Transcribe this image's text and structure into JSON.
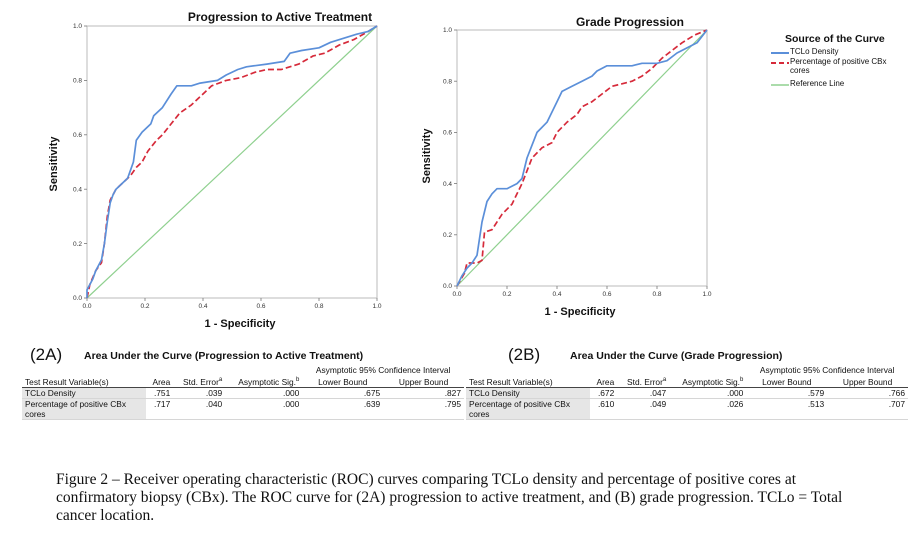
{
  "chart_data": [
    {
      "type": "line",
      "title": "Progression to Active Treatment",
      "xlabel": "1 - Specificity",
      "ylabel": "Sensitivity",
      "xlim": [
        0,
        1
      ],
      "ylim": [
        0,
        1
      ],
      "xticks": [
        "0.0",
        "0.2",
        "0.4",
        "0.6",
        "0.8",
        "1.0"
      ],
      "yticks": [
        "0.0",
        "0.2",
        "0.4",
        "0.6",
        "0.8",
        "1.0"
      ],
      "grid": false,
      "series": [
        {
          "name": "TCLo Density",
          "color": "#5b8fd9",
          "style": "solid",
          "points": [
            [
              0,
              0
            ],
            [
              0,
              0.03
            ],
            [
              0.02,
              0.07
            ],
            [
              0.03,
              0.1
            ],
            [
              0.05,
              0.14
            ],
            [
              0.06,
              0.2
            ],
            [
              0.07,
              0.28
            ],
            [
              0.08,
              0.35
            ],
            [
              0.09,
              0.38
            ],
            [
              0.1,
              0.4
            ],
            [
              0.12,
              0.42
            ],
            [
              0.14,
              0.44
            ],
            [
              0.15,
              0.47
            ],
            [
              0.16,
              0.5
            ],
            [
              0.17,
              0.58
            ],
            [
              0.19,
              0.61
            ],
            [
              0.22,
              0.64
            ],
            [
              0.23,
              0.67
            ],
            [
              0.26,
              0.7
            ],
            [
              0.29,
              0.75
            ],
            [
              0.31,
              0.78
            ],
            [
              0.36,
              0.78
            ],
            [
              0.39,
              0.79
            ],
            [
              0.45,
              0.8
            ],
            [
              0.48,
              0.82
            ],
            [
              0.52,
              0.84
            ],
            [
              0.55,
              0.85
            ],
            [
              0.62,
              0.86
            ],
            [
              0.68,
              0.87
            ],
            [
              0.7,
              0.9
            ],
            [
              0.74,
              0.91
            ],
            [
              0.8,
              0.92
            ],
            [
              0.84,
              0.94
            ],
            [
              0.93,
              0.97
            ],
            [
              0.97,
              0.98
            ],
            [
              1,
              1
            ]
          ]
        },
        {
          "name": "Percentage of positive CBx cores",
          "color": "#d62a3a",
          "style": "dashed",
          "points": [
            [
              0,
              0
            ],
            [
              0.01,
              0.05
            ],
            [
              0.03,
              0.1
            ],
            [
              0.05,
              0.13
            ],
            [
              0.06,
              0.2
            ],
            [
              0.07,
              0.3
            ],
            [
              0.08,
              0.36
            ],
            [
              0.1,
              0.4
            ],
            [
              0.12,
              0.42
            ],
            [
              0.15,
              0.45
            ],
            [
              0.17,
              0.48
            ],
            [
              0.19,
              0.5
            ],
            [
              0.21,
              0.54
            ],
            [
              0.24,
              0.58
            ],
            [
              0.26,
              0.6
            ],
            [
              0.29,
              0.64
            ],
            [
              0.32,
              0.68
            ],
            [
              0.36,
              0.71
            ],
            [
              0.39,
              0.74
            ],
            [
              0.43,
              0.78
            ],
            [
              0.48,
              0.8
            ],
            [
              0.53,
              0.81
            ],
            [
              0.58,
              0.83
            ],
            [
              0.62,
              0.84
            ],
            [
              0.67,
              0.84
            ],
            [
              0.73,
              0.86
            ],
            [
              0.78,
              0.89
            ],
            [
              0.82,
              0.9
            ],
            [
              0.87,
              0.93
            ],
            [
              0.92,
              0.95
            ],
            [
              0.97,
              0.98
            ],
            [
              1,
              1
            ]
          ]
        },
        {
          "name": "Reference Line",
          "color": "#8fd08f",
          "style": "solid",
          "points": [
            [
              0,
              0
            ],
            [
              1,
              1
            ]
          ]
        }
      ]
    },
    {
      "type": "line",
      "title": "Grade Progression",
      "xlabel": "1 - Specificity",
      "ylabel": "Sensitivity",
      "xlim": [
        0,
        1
      ],
      "ylim": [
        0,
        1
      ],
      "xticks": [
        "0.0",
        "0.2",
        "0.4",
        "0.6",
        "0.8",
        "1.0"
      ],
      "yticks": [
        "0.0",
        "0.2",
        "0.4",
        "0.6",
        "0.8",
        "1.0"
      ],
      "grid": false,
      "legend": {
        "title": "Source of the Curve",
        "position": "right"
      },
      "series": [
        {
          "name": "TCLo Density",
          "color": "#5b8fd9",
          "style": "solid",
          "points": [
            [
              0,
              0
            ],
            [
              0.02,
              0.04
            ],
            [
              0.04,
              0.07
            ],
            [
              0.06,
              0.09
            ],
            [
              0.08,
              0.12
            ],
            [
              0.1,
              0.25
            ],
            [
              0.12,
              0.33
            ],
            [
              0.14,
              0.36
            ],
            [
              0.16,
              0.38
            ],
            [
              0.2,
              0.38
            ],
            [
              0.24,
              0.4
            ],
            [
              0.26,
              0.42
            ],
            [
              0.28,
              0.5
            ],
            [
              0.3,
              0.55
            ],
            [
              0.32,
              0.6
            ],
            [
              0.36,
              0.64
            ],
            [
              0.4,
              0.72
            ],
            [
              0.42,
              0.76
            ],
            [
              0.46,
              0.78
            ],
            [
              0.5,
              0.8
            ],
            [
              0.54,
              0.82
            ],
            [
              0.56,
              0.84
            ],
            [
              0.6,
              0.86
            ],
            [
              0.7,
              0.86
            ],
            [
              0.74,
              0.87
            ],
            [
              0.8,
              0.87
            ],
            [
              0.84,
              0.88
            ],
            [
              0.88,
              0.91
            ],
            [
              0.92,
              0.93
            ],
            [
              0.96,
              0.95
            ],
            [
              1,
              1
            ]
          ]
        },
        {
          "name": "Percentage of positive CBx cores",
          "color": "#d62a3a",
          "style": "dashed",
          "points": [
            [
              0,
              0
            ],
            [
              0.03,
              0.05
            ],
            [
              0.04,
              0.09
            ],
            [
              0.08,
              0.09
            ],
            [
              0.1,
              0.1
            ],
            [
              0.11,
              0.21
            ],
            [
              0.14,
              0.22
            ],
            [
              0.18,
              0.28
            ],
            [
              0.22,
              0.32
            ],
            [
              0.24,
              0.36
            ],
            [
              0.26,
              0.4
            ],
            [
              0.28,
              0.45
            ],
            [
              0.3,
              0.5
            ],
            [
              0.34,
              0.54
            ],
            [
              0.38,
              0.56
            ],
            [
              0.4,
              0.6
            ],
            [
              0.44,
              0.64
            ],
            [
              0.48,
              0.67
            ],
            [
              0.5,
              0.7
            ],
            [
              0.54,
              0.72
            ],
            [
              0.58,
              0.75
            ],
            [
              0.62,
              0.78
            ],
            [
              0.66,
              0.79
            ],
            [
              0.7,
              0.8
            ],
            [
              0.74,
              0.82
            ],
            [
              0.78,
              0.85
            ],
            [
              0.82,
              0.89
            ],
            [
              0.86,
              0.92
            ],
            [
              0.9,
              0.95
            ],
            [
              0.95,
              0.98
            ],
            [
              1,
              1
            ]
          ]
        },
        {
          "name": "Reference Line",
          "color": "#8fd08f",
          "style": "solid",
          "points": [
            [
              0,
              0
            ],
            [
              1,
              1
            ]
          ]
        }
      ]
    }
  ],
  "tables": {
    "a": {
      "tag": "(2A)",
      "title": "Area Under the Curve (Progression to Active Treatment)",
      "ci_header": "Asymptotic 95% Confidence Interval",
      "col_variable": "Test Result Variable(s)",
      "col_area": "Area",
      "col_se": "Std. Error",
      "col_se_sup": "a",
      "col_sig": "Asymptotic Sig.",
      "col_sig_sup": "b",
      "col_lower": "Lower Bound",
      "col_upper": "Upper Bound",
      "rows": [
        {
          "variable": "TCLo Density",
          "area": ".751",
          "se": ".039",
          "sig": ".000",
          "lower": ".675",
          "upper": ".827"
        },
        {
          "variable": "Percentage of positive CBx cores",
          "area": ".717",
          "se": ".040",
          "sig": ".000",
          "lower": ".639",
          "upper": ".795"
        }
      ]
    },
    "b": {
      "tag": "(2B)",
      "title": "Area Under the Curve (Grade Progression)",
      "ci_header": "Asymptotic 95% Confidence Interval",
      "col_variable": "Test Result Variable(s)",
      "col_area": "Area",
      "col_se": "Std. Error",
      "col_se_sup": "a",
      "col_sig": "Asymptotic Sig.",
      "col_sig_sup": "b",
      "col_lower": "Lower Bound",
      "col_upper": "Upper Bound",
      "rows": [
        {
          "variable": "TCLo Density",
          "area": ".672",
          "se": ".047",
          "sig": ".000",
          "lower": ".579",
          "upper": ".766"
        },
        {
          "variable": "Percentage of positive CBx cores",
          "area": ".610",
          "se": ".049",
          "sig": ".026",
          "lower": ".513",
          "upper": ".707"
        }
      ]
    }
  },
  "caption": "Figure 2 – Receiver operating characteristic (ROC) curves comparing TCLo density and percentage of positive cores at confirmatory biopsy (CBx). The ROC curve for (2A) progression to active treatment, and (B) grade progression. TCLo = Total cancer location."
}
